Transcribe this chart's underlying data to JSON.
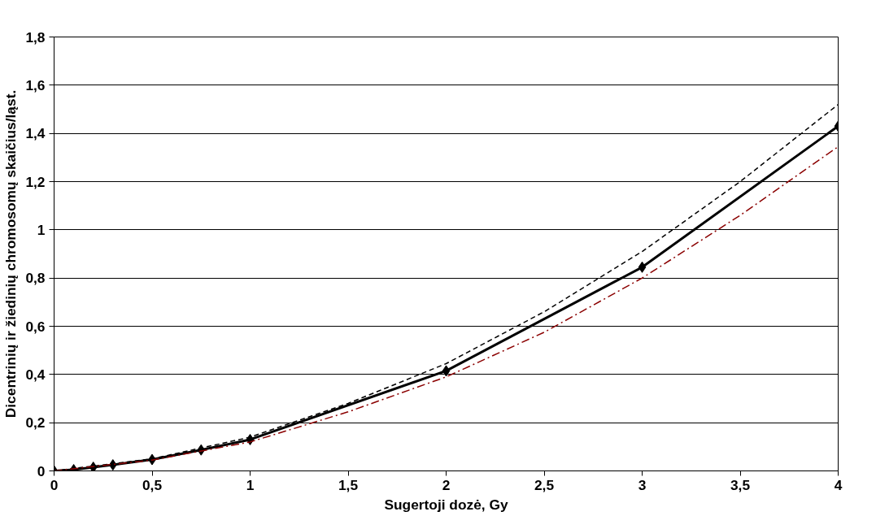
{
  "chart_data": {
    "type": "line",
    "xlabel": "Sugertoji dozė, Gy",
    "ylabel": "Dicentrinių ir žiedinių chromosomų skaičius/ląst.",
    "xlim": [
      0,
      4
    ],
    "ylim": [
      0,
      1.8
    ],
    "xticks": [
      0,
      {
        "value": 0.5,
        "label": "0,5"
      },
      1,
      {
        "value": 1.5,
        "label": "1,5"
      },
      2,
      {
        "value": 2.5,
        "label": "2,5"
      },
      3,
      {
        "value": 3.5,
        "label": "3,5"
      },
      4
    ],
    "yticks": [
      0,
      {
        "value": 0.2,
        "label": "0,2"
      },
      {
        "value": 0.4,
        "label": "0,4"
      },
      {
        "value": 0.6,
        "label": "0,6"
      },
      {
        "value": 0.8,
        "label": "0,8"
      },
      1,
      {
        "value": 1.2,
        "label": "1,2"
      },
      {
        "value": 1.4,
        "label": "1,4"
      },
      {
        "value": 1.6,
        "label": "1,6"
      },
      {
        "value": 1.8,
        "label": "1,8"
      }
    ],
    "grid": "y",
    "series": [
      {
        "color": "#000000",
        "marker": "diamond",
        "line_style": "solid",
        "x": [
          0,
          0.1,
          0.2,
          0.3,
          0.5,
          0.75,
          1,
          2,
          3,
          4
        ],
        "values": [
          0,
          0.005,
          0.015,
          0.025,
          0.047,
          0.087,
          0.13,
          0.415,
          0.845,
          1.43
        ]
      },
      {
        "color": "#000000",
        "marker": "none",
        "line_style": "dashed",
        "x": [
          0,
          0.5,
          1,
          1.5,
          2,
          2.5,
          3,
          3.5,
          4
        ],
        "values": [
          0,
          0.05,
          0.14,
          0.28,
          0.445,
          0.66,
          0.91,
          1.2,
          1.52
        ]
      },
      {
        "color": "#8b0000",
        "marker": "none",
        "line_style": "dashdot",
        "x": [
          0,
          0.5,
          1,
          1.5,
          2,
          2.5,
          3,
          3.5,
          4
        ],
        "values": [
          0,
          0.045,
          0.12,
          0.245,
          0.39,
          0.575,
          0.8,
          1.06,
          1.345
        ]
      }
    ]
  }
}
